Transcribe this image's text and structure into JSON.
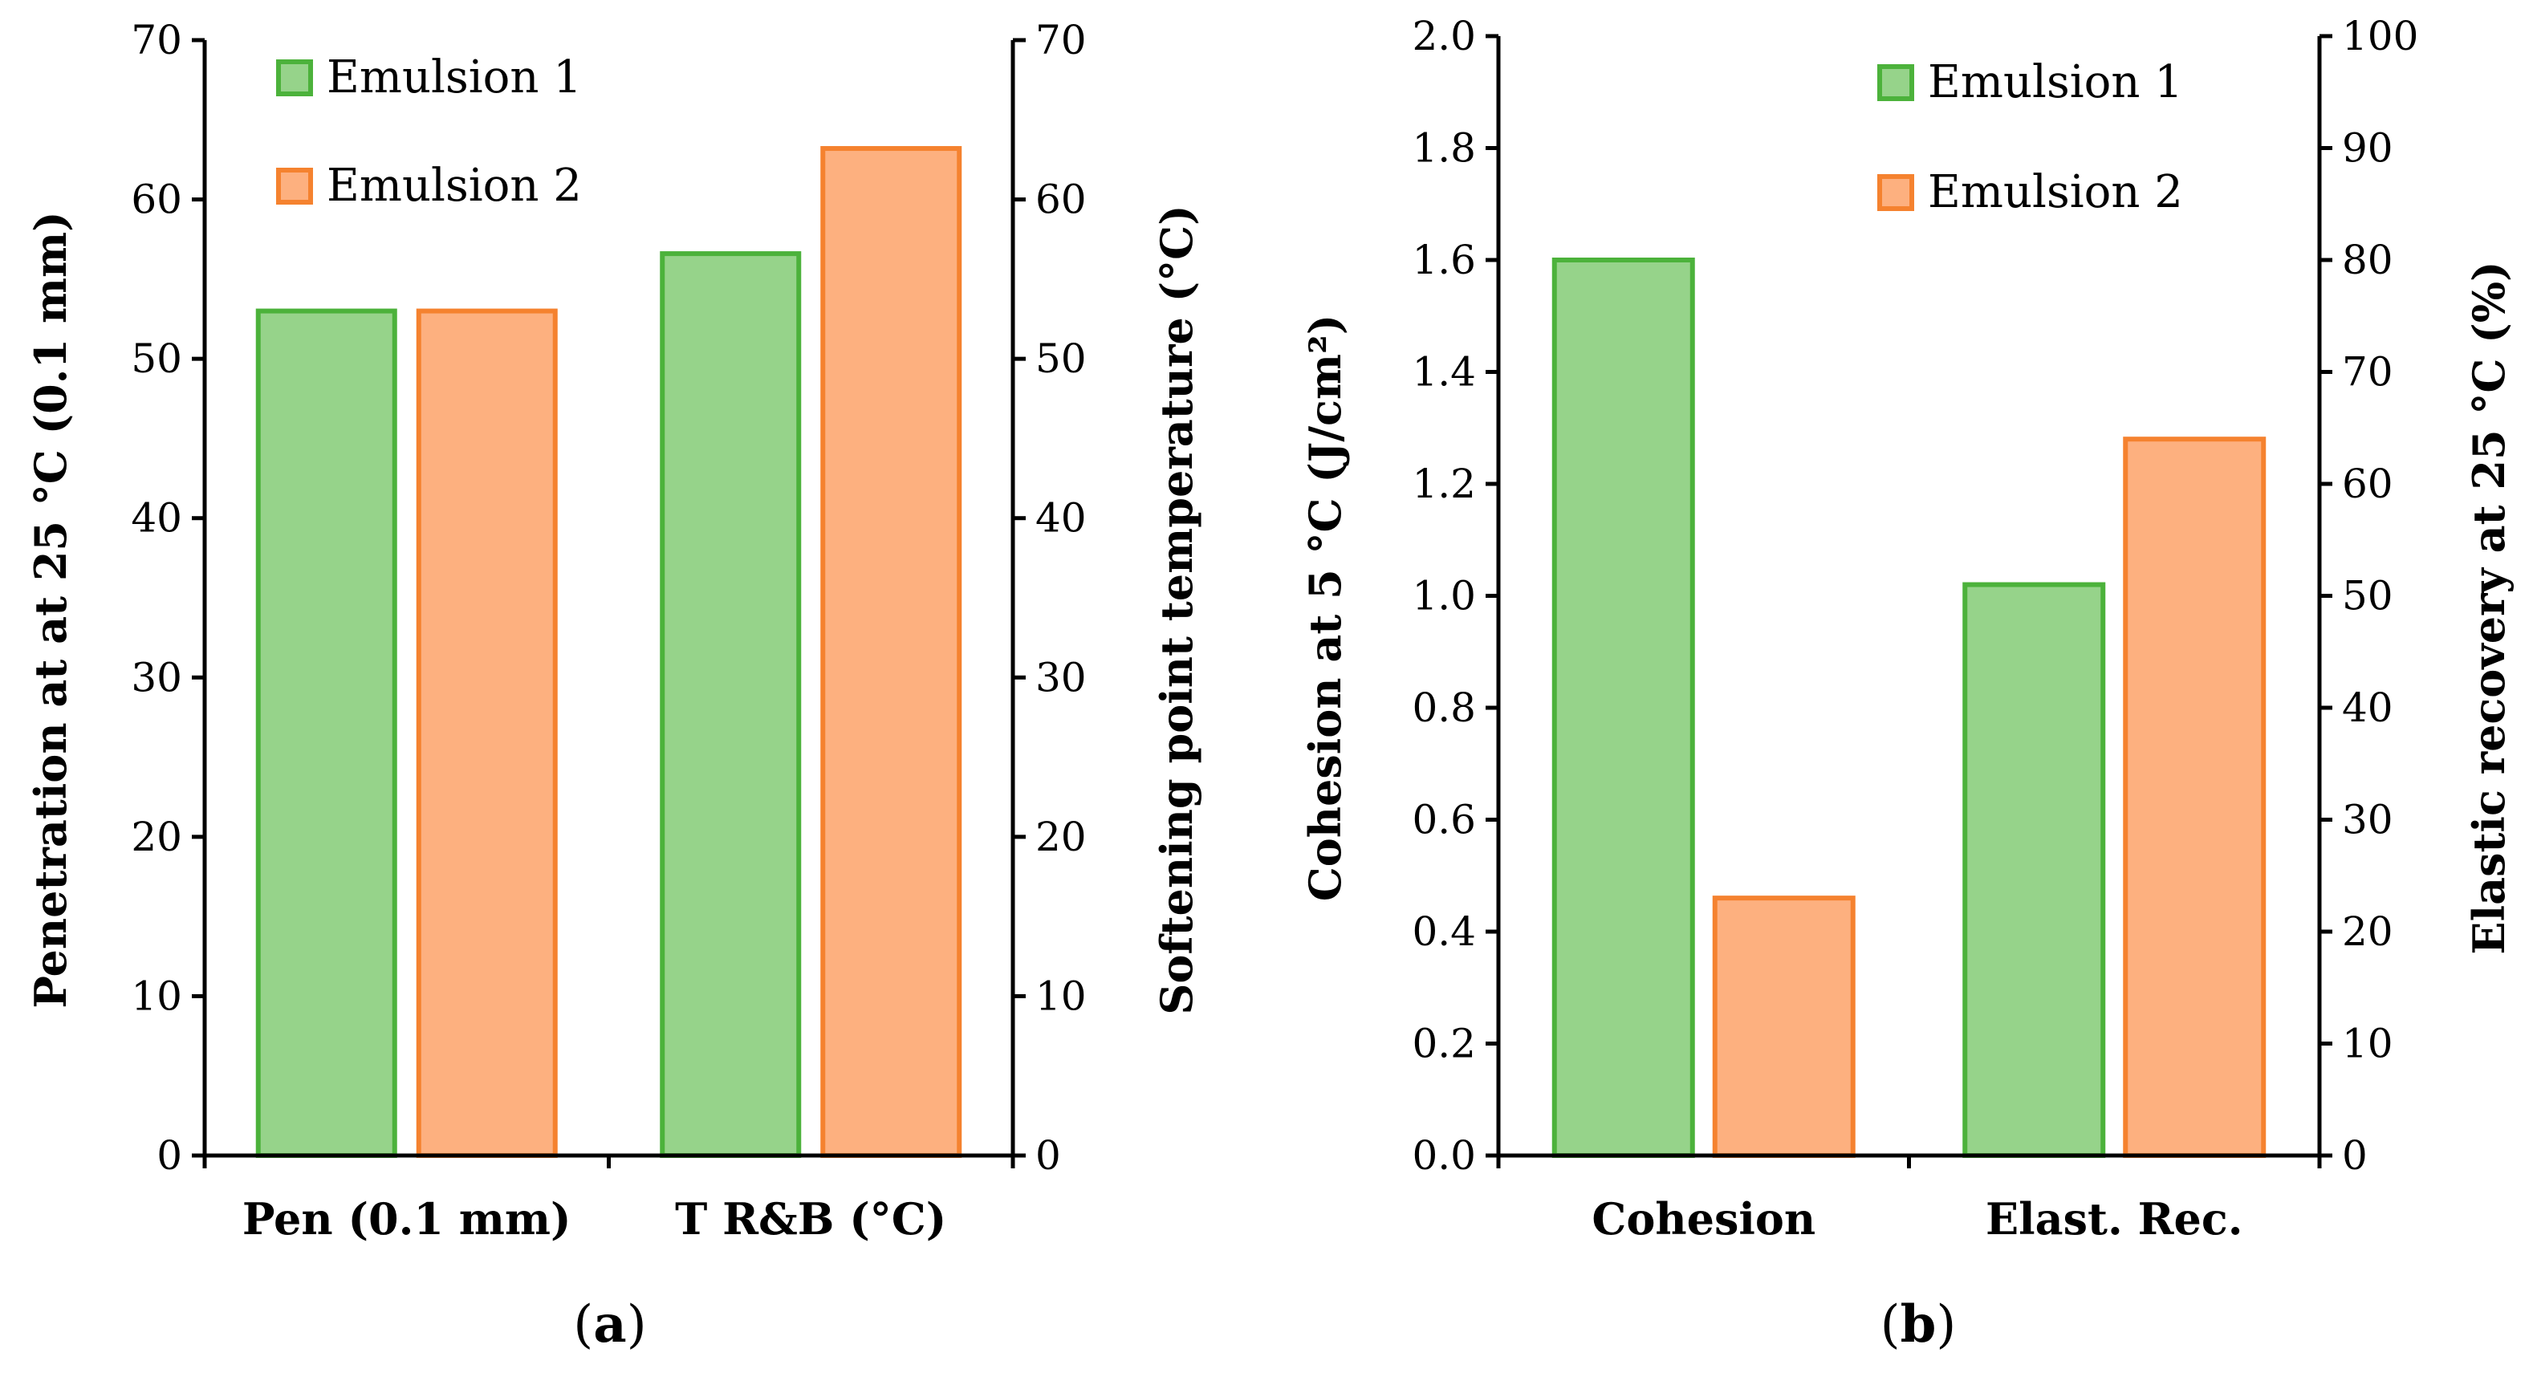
{
  "colors": {
    "emulsion1_fill": "#96d38a",
    "emulsion1_stroke": "#4cb23b",
    "emulsion2_fill": "#fdb07f",
    "emulsion2_stroke": "#f5822f"
  },
  "chart_data": [
    {
      "type": "bar",
      "panel_label": "a",
      "categories": [
        "Pen (0.1 mm)",
        "T R&B (°C)"
      ],
      "series": [
        {
          "name": "Emulsion 1",
          "values": [
            53,
            56.6
          ]
        },
        {
          "name": "Emulsion 2",
          "values": [
            53,
            63.2
          ]
        }
      ],
      "ylabel_left": "Penetration at at 25 °C (0.1 mm)",
      "ylabel_right": "Softening point temperature (°C)",
      "ylim_left": [
        0,
        70
      ],
      "ylim_right": [
        0,
        70
      ],
      "yticks_left": [
        "0",
        "10",
        "20",
        "30",
        "40",
        "50",
        "60",
        "70"
      ],
      "yticks_right": [
        "0",
        "10",
        "20",
        "30",
        "40",
        "50",
        "60",
        "70"
      ],
      "legend_placement": "top-left"
    },
    {
      "type": "bar",
      "panel_label": "b",
      "categories": [
        "Cohesion",
        "Elast. Rec."
      ],
      "series": [
        {
          "name": "Emulsion 1",
          "values": [
            1.6,
            1.02
          ]
        },
        {
          "name": "Emulsion 2",
          "values": [
            0.46,
            1.28
          ]
        }
      ],
      "ylabel_left": "Cohesion at 5 °C (J/cm²)",
      "ylabel_right": "Elastic recovery at 25 °C (%)",
      "ylim_left": [
        0,
        2.0
      ],
      "ylim_right": [
        0,
        100
      ],
      "yticks_left": [
        "0.0",
        "0.2",
        "0.4",
        "0.6",
        "0.8",
        "1.0",
        "1.2",
        "1.4",
        "1.6",
        "1.8",
        "2.0"
      ],
      "yticks_right": [
        "0",
        "10",
        "20",
        "30",
        "40",
        "50",
        "60",
        "70",
        "80",
        "90",
        "100"
      ],
      "legend_placement": "top-right"
    }
  ]
}
